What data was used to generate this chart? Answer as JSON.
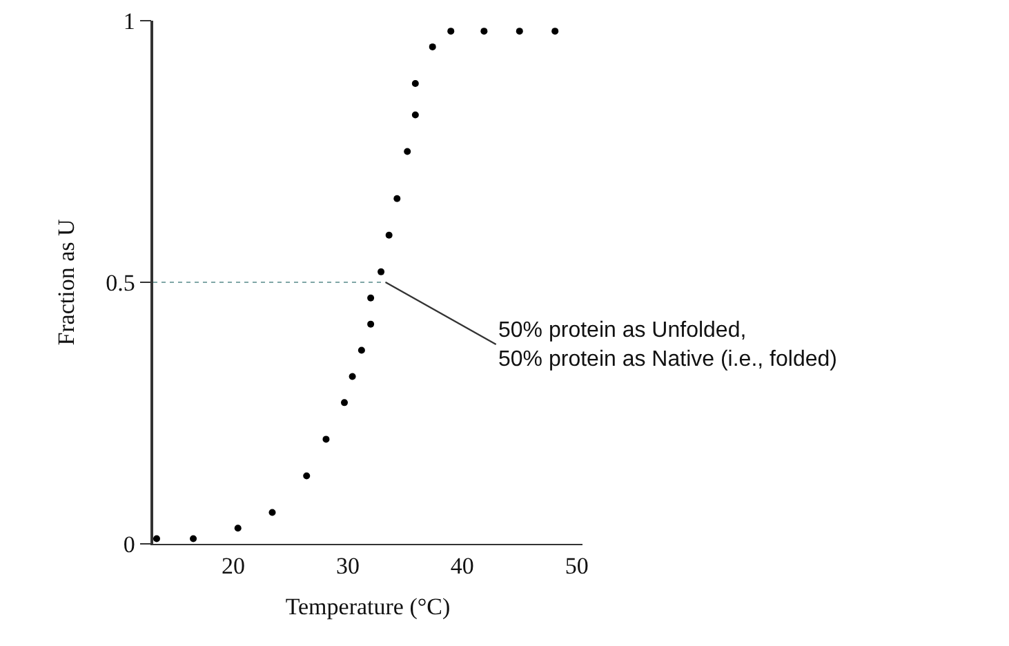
{
  "chart_data": {
    "type": "scatter",
    "xlabel": "Temperature (°C)",
    "ylabel": "Fraction as U",
    "x": [
      13.3,
      16.5,
      20.4,
      23.4,
      26.4,
      28.1,
      29.7,
      30.4,
      31.2,
      32.0,
      32.0,
      32.9,
      33.6,
      34.3,
      35.2,
      35.9,
      35.9,
      37.4,
      39.0,
      41.9,
      45.0,
      48.1
    ],
    "values": [
      0.01,
      0.01,
      0.03,
      0.06,
      0.13,
      0.2,
      0.27,
      0.32,
      0.37,
      0.42,
      0.47,
      0.52,
      0.59,
      0.66,
      0.75,
      0.82,
      0.88,
      0.95,
      0.98,
      0.98,
      0.98,
      0.98
    ],
    "color": "#000000",
    "marker": "circle",
    "xlim": [
      13,
      50.5
    ],
    "ylim": [
      0,
      1
    ],
    "xticks": [
      20,
      30,
      40,
      50
    ],
    "yticks": [
      0,
      0.5,
      1
    ],
    "ref_lines": [
      {
        "axis": "y",
        "value": 0.5,
        "line_style": "dotted",
        "color": "#7fa6a6"
      }
    ],
    "annotations": [
      {
        "text": "50% protein as Unfolded,\n50% protein as Native (i.e., folded)",
        "x": 33.3,
        "y": 0.5
      }
    ]
  }
}
